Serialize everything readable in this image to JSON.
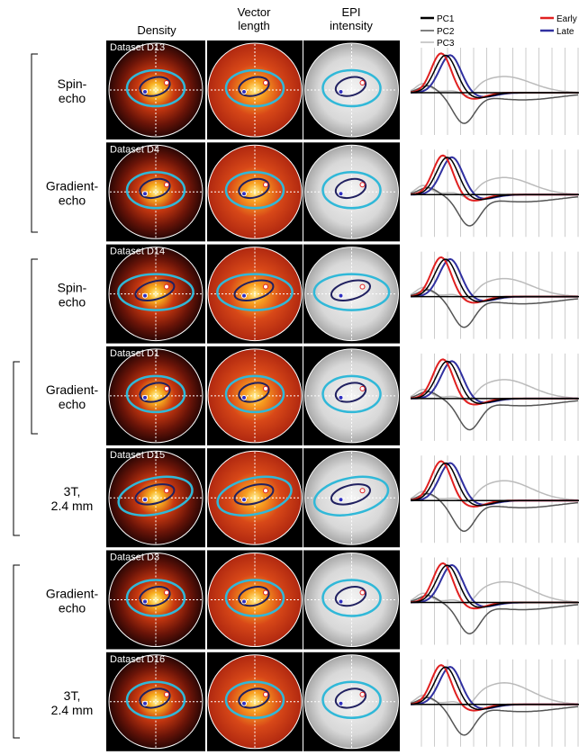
{
  "columns": [
    "Density",
    "Vector length",
    "EPI intensity"
  ],
  "legend": [
    "PC1",
    "Early",
    "PC2",
    "Late",
    "PC3"
  ],
  "rows": [
    {
      "label": [
        "Spin-",
        "echo"
      ],
      "dataset": "Dataset D13"
    },
    {
      "label": [
        "Gradient-",
        "echo"
      ],
      "dataset": "Dataset D4"
    },
    {
      "label": [
        "Spin-",
        "echo"
      ],
      "dataset": "Dataset D14"
    },
    {
      "label": [
        "Gradient-",
        "echo"
      ],
      "dataset": "Dataset D1"
    },
    {
      "label": [
        "3T,",
        "2.4 mm"
      ],
      "dataset": "Dataset D15"
    },
    {
      "label": [
        "Gradient-",
        "echo"
      ],
      "dataset": "Dataset D3"
    },
    {
      "label": [
        "3T,",
        "2.4 mm"
      ],
      "dataset": "Dataset D16"
    }
  ]
}
